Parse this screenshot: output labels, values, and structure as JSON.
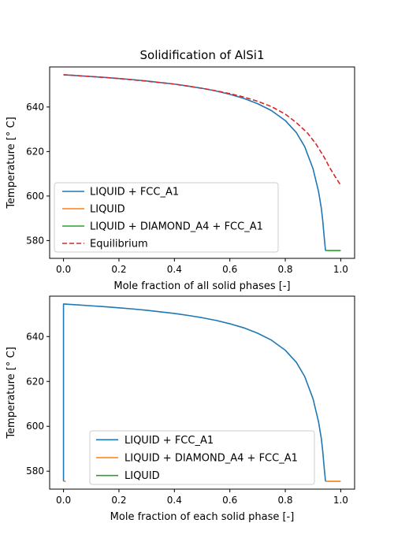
{
  "figure_title": "Solidification of AlSi1",
  "chart_data": [
    {
      "type": "line",
      "title": "Solidification of AlSi1",
      "xlabel": "Mole fraction of all solid phases [-]",
      "ylabel": "Temperature [° C]",
      "xlim": [
        -0.05,
        1.05
      ],
      "ylim": [
        572,
        658
      ],
      "xticks": [
        "0.0",
        "0.2",
        "0.4",
        "0.6",
        "0.8",
        "1.0"
      ],
      "xtick_values": [
        0,
        0.2,
        0.4,
        0.6,
        0.8,
        1.0
      ],
      "yticks": [
        "580",
        "600",
        "620",
        "640"
      ],
      "ytick_values": [
        580,
        600,
        620,
        640
      ],
      "grid": false,
      "legend_position": "lower-left",
      "series": [
        {
          "name": "LIQUID + FCC_A1",
          "color": "#1f77b4",
          "style": "solid",
          "x": [
            0,
            0.05,
            0.1,
            0.15,
            0.2,
            0.25,
            0.3,
            0.35,
            0.4,
            0.45,
            0.5,
            0.55,
            0.6,
            0.65,
            0.7,
            0.75,
            0.8,
            0.84,
            0.87,
            0.9,
            0.92,
            0.93,
            0.935,
            0.94,
            0.945
          ],
          "y": [
            654.5,
            654.1,
            653.7,
            653.3,
            652.8,
            652.3,
            651.7,
            651.0,
            650.3,
            649.4,
            648.4,
            647.2,
            645.7,
            643.9,
            641.5,
            638.4,
            633.9,
            628.5,
            622.2,
            612.3,
            602.0,
            594.5,
            589.0,
            582.0,
            575.5
          ]
        },
        {
          "name": "LIQUID",
          "color": "#ff7f0e",
          "style": "solid",
          "x": [
            0,
            0
          ],
          "y": [
            654.5,
            654.5
          ]
        },
        {
          "name": "LIQUID + DIAMOND_A4 + FCC_A1",
          "color": "#2ca02c",
          "style": "solid",
          "x": [
            0.945,
            1.0
          ],
          "y": [
            575.5,
            575.5
          ]
        },
        {
          "name": "Equilibrium",
          "color": "#d62728",
          "style": "dashed",
          "x": [
            0,
            0.1,
            0.2,
            0.3,
            0.4,
            0.5,
            0.55,
            0.6,
            0.65,
            0.7,
            0.75,
            0.8,
            0.84,
            0.88,
            0.91,
            0.94,
            0.96,
            0.98,
            1.0
          ],
          "y": [
            654.5,
            653.7,
            652.8,
            651.6,
            650.3,
            648.4,
            647.3,
            646.0,
            644.5,
            642.6,
            640.2,
            636.8,
            633.0,
            628.3,
            623.5,
            617.5,
            612.8,
            608.7,
            604.8
          ]
        }
      ]
    },
    {
      "type": "line",
      "title": "",
      "xlabel": "Mole fraction of each solid phase [-]",
      "ylabel": "Temperature  [° C]",
      "xlim": [
        -0.05,
        1.05
      ],
      "ylim": [
        572,
        658
      ],
      "xticks": [
        "0.0",
        "0.2",
        "0.4",
        "0.6",
        "0.8",
        "1.0"
      ],
      "xtick_values": [
        0,
        0.2,
        0.4,
        0.6,
        0.8,
        1.0
      ],
      "yticks": [
        "580",
        "600",
        "620",
        "640"
      ],
      "ytick_values": [
        580,
        600,
        620,
        640
      ],
      "grid": false,
      "legend_position": "lower-center",
      "series": [
        {
          "name": "LIQUID + FCC_A1",
          "color": "#1f77b4",
          "style": "solid",
          "x": [
            0,
            0,
            0.05,
            0.1,
            0.15,
            0.2,
            0.25,
            0.3,
            0.35,
            0.4,
            0.45,
            0.5,
            0.55,
            0.6,
            0.65,
            0.7,
            0.75,
            0.8,
            0.84,
            0.87,
            0.9,
            0.92,
            0.93,
            0.935,
            0.94,
            0.945
          ],
          "y": [
            575.5,
            654.5,
            654.1,
            653.7,
            653.3,
            652.8,
            652.3,
            651.7,
            651.0,
            650.3,
            649.4,
            648.4,
            647.2,
            645.7,
            643.9,
            641.5,
            638.4,
            633.9,
            628.5,
            622.2,
            612.3,
            602.0,
            594.5,
            589.0,
            582.0,
            575.5
          ]
        },
        {
          "name": "LIQUID + DIAMOND_A4 + FCC_A1",
          "color": "#ff7f0e",
          "style": "solid",
          "x": [
            0.945,
            1.0
          ],
          "y": [
            575.5,
            575.5
          ],
          "x2": [
            0,
            0.008
          ],
          "y2": [
            575.5,
            575.5
          ]
        },
        {
          "name": "LIQUID",
          "color": "#2ca02c",
          "style": "solid",
          "x": [
            0,
            0
          ],
          "y": [
            654.5,
            654.5
          ]
        }
      ]
    }
  ]
}
